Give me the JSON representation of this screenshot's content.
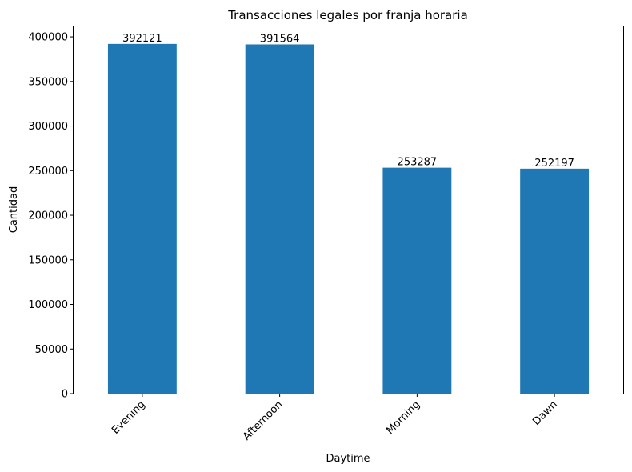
{
  "chart_data": {
    "type": "bar",
    "title": "Transacciones legales por franja horaria",
    "xlabel": "Daytime",
    "ylabel": "Cantidad",
    "categories": [
      "Evening",
      "Afternoon",
      "Morning",
      "Dawn"
    ],
    "values": [
      392121,
      391564,
      253287,
      252197
    ],
    "ylim": [
      0,
      411727
    ],
    "yticks": [
      0,
      50000,
      100000,
      150000,
      200000,
      250000,
      300000,
      350000,
      400000
    ],
    "bar_color": "#1f77b4",
    "grid": false,
    "xtick_rotation": 45
  }
}
